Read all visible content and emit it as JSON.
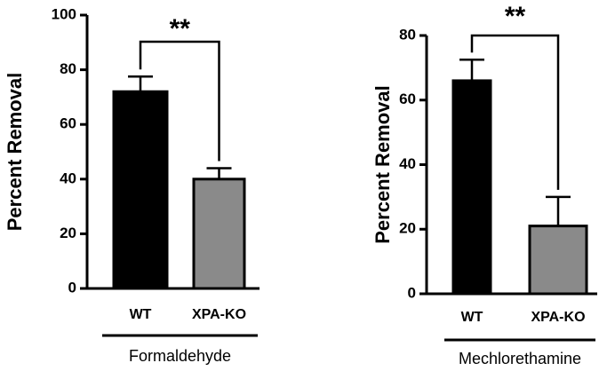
{
  "chart_data": [
    {
      "type": "bar",
      "ylabel": "Percent Removal",
      "xlabel": "Formaldehyde",
      "categories": [
        "WT",
        "XPA-KO"
      ],
      "values": [
        72,
        40
      ],
      "errors": [
        5.5,
        4
      ],
      "colors": [
        "#000000",
        "#8a8a8a"
      ],
      "ylim": [
        0,
        100
      ],
      "yticks": [
        0,
        20,
        40,
        60,
        80,
        100
      ],
      "annotation": "**"
    },
    {
      "type": "bar",
      "ylabel": "Percent Removal",
      "xlabel": "Mechlorethamine",
      "categories": [
        "WT",
        "XPA-KO"
      ],
      "values": [
        66,
        21
      ],
      "errors": [
        6.5,
        9
      ],
      "colors": [
        "#000000",
        "#8a8a8a"
      ],
      "ylim": [
        0,
        80
      ],
      "yticks": [
        0,
        20,
        40,
        60,
        80
      ],
      "annotation": "**"
    }
  ]
}
